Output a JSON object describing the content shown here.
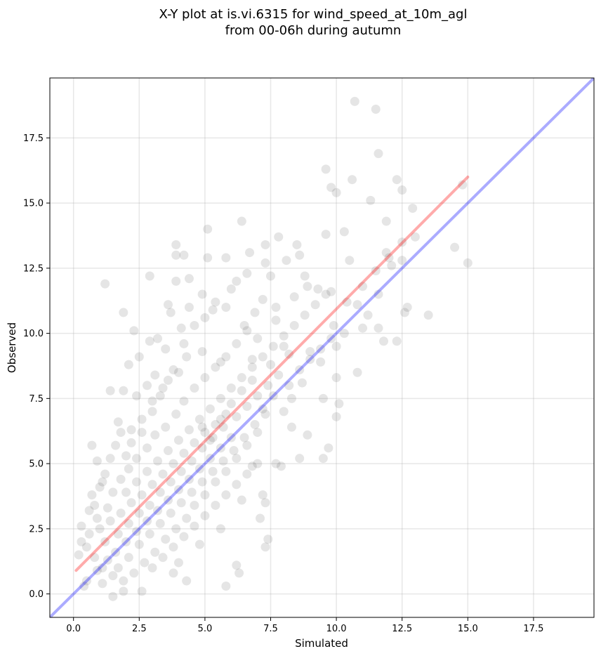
{
  "chart_data": {
    "type": "scatter",
    "title_lines": [
      "X-Y plot at is.vi.6315 for wind_speed_at_10m_agl",
      "from 00-06h during autumn"
    ],
    "xlabel": "Simulated",
    "ylabel": "Observed",
    "xlim": [
      -0.9,
      19.8
    ],
    "ylim": [
      -0.9,
      19.8
    ],
    "xticks": [
      0.0,
      2.5,
      5.0,
      7.5,
      10.0,
      12.5,
      15.0,
      17.5
    ],
    "yticks": [
      0.0,
      2.5,
      5.0,
      7.5,
      10.0,
      12.5,
      15.0,
      17.5
    ],
    "xtick_labels": [
      "0.0",
      "2.5",
      "5.0",
      "7.5",
      "10.0",
      "12.5",
      "15.0",
      "17.5"
    ],
    "ytick_labels": [
      "0.0",
      "2.5",
      "5.0",
      "7.5",
      "10.0",
      "12.5",
      "15.0",
      "17.5"
    ],
    "grid": true,
    "point_color": "#2b2b2b",
    "reference_lines": [
      {
        "kind": "one-to-one",
        "color": "#0000ff",
        "x": [
          -0.9,
          19.8
        ],
        "y": [
          -0.9,
          19.8
        ]
      },
      {
        "kind": "fit",
        "color": "#ff0000",
        "x": [
          0.1,
          15.0
        ],
        "y": [
          0.9,
          16.0
        ]
      }
    ],
    "points": [
      [
        10.7,
        18.9
      ],
      [
        11.5,
        18.6
      ],
      [
        11.6,
        16.9
      ],
      [
        9.6,
        16.3
      ],
      [
        10.6,
        15.9
      ],
      [
        9.8,
        15.6
      ],
      [
        10.0,
        15.4
      ],
      [
        14.8,
        15.7
      ],
      [
        12.3,
        15.9
      ],
      [
        12.5,
        15.5
      ],
      [
        11.3,
        15.1
      ],
      [
        12.9,
        14.8
      ],
      [
        11.9,
        14.3
      ],
      [
        6.4,
        14.3
      ],
      [
        5.1,
        14.0
      ],
      [
        10.3,
        13.9
      ],
      [
        9.6,
        13.8
      ],
      [
        7.8,
        13.7
      ],
      [
        8.5,
        13.4
      ],
      [
        3.9,
        13.4
      ],
      [
        7.3,
        13.4
      ],
      [
        4.2,
        13.0
      ],
      [
        3.9,
        13.0
      ],
      [
        14.5,
        13.3
      ],
      [
        15.0,
        12.7
      ],
      [
        13.0,
        13.7
      ],
      [
        12.5,
        13.5
      ],
      [
        5.1,
        12.9
      ],
      [
        5.8,
        12.9
      ],
      [
        2.9,
        12.2
      ],
      [
        3.9,
        12.0
      ],
      [
        4.4,
        12.1
      ],
      [
        1.2,
        11.9
      ],
      [
        12.0,
        12.9
      ],
      [
        12.5,
        12.8
      ],
      [
        11.6,
        11.5
      ],
      [
        12.7,
        11.0
      ],
      [
        13.5,
        10.7
      ],
      [
        12.6,
        10.8
      ],
      [
        11.6,
        10.2
      ],
      [
        11.8,
        9.7
      ],
      [
        12.3,
        9.7
      ],
      [
        10.8,
        8.5
      ],
      [
        10.0,
        8.3
      ],
      [
        10.1,
        7.3
      ],
      [
        10.0,
        6.8
      ],
      [
        9.7,
        5.6
      ],
      [
        9.5,
        5.2
      ],
      [
        8.6,
        5.2
      ],
      [
        7.7,
        5.0
      ],
      [
        7.9,
        4.9
      ],
      [
        6.8,
        4.9
      ],
      [
        7.2,
        3.8
      ],
      [
        7.3,
        3.5
      ],
      [
        7.1,
        2.9
      ],
      [
        7.4,
        2.1
      ],
      [
        7.3,
        1.8
      ],
      [
        6.2,
        1.1
      ],
      [
        6.3,
        0.8
      ],
      [
        5.8,
        0.3
      ],
      [
        4.3,
        0.5
      ],
      [
        3.8,
        0.8
      ],
      [
        2.6,
        0.1
      ],
      [
        1.5,
        -0.1
      ],
      [
        1.9,
        0.1
      ],
      [
        0.2,
        1.5
      ],
      [
        0.3,
        2.0
      ],
      [
        0.3,
        2.6
      ],
      [
        0.6,
        3.2
      ],
      [
        0.7,
        5.7
      ],
      [
        0.9,
        5.1
      ],
      [
        1.4,
        7.8
      ],
      [
        1.9,
        7.8
      ],
      [
        1.8,
        6.2
      ],
      [
        2.1,
        8.8
      ],
      [
        1.9,
        10.8
      ],
      [
        2.3,
        10.1
      ],
      [
        2.5,
        9.1
      ],
      [
        2.8,
        8.0
      ],
      [
        3.6,
        11.1
      ],
      [
        3.7,
        10.8
      ],
      [
        3.2,
        9.8
      ],
      [
        4.4,
        11.0
      ],
      [
        4.9,
        11.5
      ],
      [
        5.3,
        10.9
      ],
      [
        6.0,
        11.7
      ],
      [
        6.6,
        12.3
      ],
      [
        8.8,
        12.2
      ],
      [
        9.3,
        11.7
      ],
      [
        9.8,
        11.6
      ],
      [
        10.4,
        11.2
      ],
      [
        10.5,
        12.8
      ],
      [
        9.9,
        10.3
      ],
      [
        10.0,
        9.5
      ],
      [
        10.3,
        10.0
      ],
      [
        11.0,
        10.2
      ],
      [
        11.2,
        10.7
      ],
      [
        9.0,
        9.3
      ],
      [
        9.5,
        7.5
      ],
      [
        8.9,
        6.1
      ],
      [
        8.3,
        6.4
      ],
      [
        8.2,
        8.0
      ],
      [
        8.7,
        8.1
      ],
      [
        9.4,
        8.9
      ],
      [
        11.0,
        11.8
      ],
      [
        11.5,
        12.4
      ],
      [
        11.9,
        13.1
      ],
      [
        10.8,
        11.1
      ],
      [
        12.1,
        12.6
      ],
      [
        5.6,
        8.9
      ],
      [
        4.9,
        9.3
      ],
      [
        6.6,
        10.1
      ],
      [
        7.0,
        9.8
      ],
      [
        7.7,
        10.5
      ],
      [
        8.4,
        11.4
      ],
      [
        7.5,
        12.2
      ],
      [
        7.3,
        12.7
      ],
      [
        6.7,
        13.1
      ],
      [
        8.1,
        12.8
      ],
      [
        8.6,
        13.0
      ],
      [
        8.9,
        11.8
      ],
      [
        7.7,
        11.0
      ],
      [
        6.8,
        9.0
      ],
      [
        7.5,
        8.8
      ],
      [
        8.0,
        9.5
      ],
      [
        4.3,
        9.1
      ],
      [
        4.0,
        8.5
      ],
      [
        3.6,
        8.2
      ],
      [
        3.3,
        7.6
      ],
      [
        3.0,
        7.0
      ],
      [
        2.6,
        6.7
      ],
      [
        2.2,
        6.3
      ],
      [
        2.0,
        5.3
      ],
      [
        1.6,
        5.7
      ],
      [
        1.2,
        4.6
      ],
      [
        1.0,
        4.1
      ],
      [
        0.7,
        3.8
      ],
      [
        0.9,
        2.9
      ],
      [
        1.3,
        3.3
      ],
      [
        1.5,
        3.9
      ],
      [
        1.8,
        4.4
      ],
      [
        2.1,
        4.8
      ],
      [
        2.4,
        5.2
      ],
      [
        2.8,
        5.6
      ],
      [
        3.1,
        6.1
      ],
      [
        3.5,
        6.4
      ],
      [
        3.9,
        6.9
      ],
      [
        4.2,
        7.4
      ],
      [
        4.6,
        7.9
      ],
      [
        5.0,
        8.3
      ],
      [
        5.4,
        8.7
      ],
      [
        5.8,
        9.1
      ],
      [
        6.2,
        9.6
      ],
      [
        6.5,
        10.3
      ],
      [
        6.9,
        10.8
      ],
      [
        7.2,
        11.3
      ],
      [
        4.9,
        6.4
      ],
      [
        5.2,
        5.9
      ],
      [
        5.6,
        6.7
      ],
      [
        6.0,
        7.3
      ],
      [
        6.4,
        7.8
      ],
      [
        6.8,
        8.2
      ],
      [
        7.2,
        7.1
      ],
      [
        7.6,
        7.6
      ],
      [
        8.0,
        7.0
      ],
      [
        8.3,
        7.5
      ],
      [
        7.0,
        6.2
      ],
      [
        6.6,
        5.7
      ],
      [
        6.2,
        5.2
      ],
      [
        5.8,
        4.7
      ],
      [
        5.4,
        4.3
      ],
      [
        5.0,
        3.8
      ],
      [
        4.6,
        3.4
      ],
      [
        4.3,
        2.9
      ],
      [
        3.9,
        2.5
      ],
      [
        3.5,
        2.1
      ],
      [
        3.1,
        1.6
      ],
      [
        2.7,
        1.2
      ],
      [
        2.3,
        0.8
      ],
      [
        1.9,
        0.5
      ],
      [
        1.5,
        0.7
      ],
      [
        1.1,
        1.0
      ],
      [
        0.8,
        1.4
      ],
      [
        0.5,
        1.8
      ],
      [
        0.6,
        2.3
      ],
      [
        1.0,
        2.5
      ],
      [
        1.4,
        2.8
      ],
      [
        1.8,
        3.1
      ],
      [
        2.2,
        3.5
      ],
      [
        2.6,
        3.8
      ],
      [
        3.0,
        4.2
      ],
      [
        3.4,
        4.6
      ],
      [
        3.8,
        5.0
      ],
      [
        4.2,
        5.4
      ],
      [
        4.6,
        5.8
      ],
      [
        5.0,
        6.2
      ],
      [
        1.6,
        1.6
      ],
      [
        2.0,
        2.0
      ],
      [
        2.4,
        2.4
      ],
      [
        2.8,
        2.8
      ],
      [
        3.2,
        3.2
      ],
      [
        3.6,
        3.6
      ],
      [
        4.0,
        4.0
      ],
      [
        4.4,
        4.4
      ],
      [
        4.8,
        4.8
      ],
      [
        5.2,
        5.2
      ],
      [
        5.6,
        5.6
      ],
      [
        6.0,
        6.0
      ],
      [
        1.2,
        2.0
      ],
      [
        1.7,
        2.3
      ],
      [
        2.1,
        2.7
      ],
      [
        2.5,
        3.1
      ],
      [
        2.9,
        3.4
      ],
      [
        3.3,
        3.9
      ],
      [
        3.7,
        4.3
      ],
      [
        4.1,
        4.7
      ],
      [
        4.5,
        5.1
      ],
      [
        4.9,
        5.6
      ],
      [
        5.3,
        6.0
      ],
      [
        5.7,
        6.4
      ],
      [
        1.3,
        1.3
      ],
      [
        1.7,
        1.0
      ],
      [
        2.1,
        1.4
      ],
      [
        2.5,
        1.9
      ],
      [
        2.9,
        2.3
      ],
      [
        3.3,
        2.7
      ],
      [
        3.7,
        3.1
      ],
      [
        4.1,
        3.5
      ],
      [
        4.5,
        3.9
      ],
      [
        4.9,
        4.3
      ],
      [
        5.3,
        4.7
      ],
      [
        5.7,
        5.1
      ],
      [
        6.1,
        5.5
      ],
      [
        6.5,
        6.0
      ],
      [
        6.9,
        6.5
      ],
      [
        7.3,
        6.9
      ],
      [
        2.0,
        3.9
      ],
      [
        2.4,
        4.3
      ],
      [
        2.8,
        4.7
      ],
      [
        3.2,
        5.1
      ],
      [
        3.6,
        5.5
      ],
      [
        4.0,
        5.9
      ],
      [
        4.4,
        6.3
      ],
      [
        4.8,
        6.7
      ],
      [
        5.2,
        7.1
      ],
      [
        5.6,
        7.5
      ],
      [
        6.0,
        7.9
      ],
      [
        6.4,
        8.3
      ],
      [
        6.8,
        8.7
      ],
      [
        7.2,
        9.1
      ],
      [
        7.6,
        9.5
      ],
      [
        8.0,
        9.9
      ],
      [
        8.4,
        10.3
      ],
      [
        8.8,
        10.7
      ],
      [
        9.2,
        11.1
      ],
      [
        9.6,
        11.5
      ],
      [
        8.6,
        8.6
      ],
      [
        9.0,
        9.0
      ],
      [
        9.4,
        9.4
      ],
      [
        9.8,
        9.8
      ],
      [
        8.2,
        9.2
      ],
      [
        7.8,
        8.4
      ],
      [
        7.4,
        8.0
      ],
      [
        7.0,
        7.6
      ],
      [
        6.6,
        7.2
      ],
      [
        6.2,
        6.8
      ],
      [
        5.8,
        6.9
      ],
      [
        5.4,
        6.5
      ],
      [
        3.0,
        1.0
      ],
      [
        3.4,
        1.4
      ],
      [
        3.8,
        1.8
      ],
      [
        4.2,
        2.2
      ],
      [
        4.6,
        2.6
      ],
      [
        5.0,
        3.0
      ],
      [
        5.4,
        3.4
      ],
      [
        5.8,
        3.8
      ],
      [
        6.2,
        4.2
      ],
      [
        6.6,
        4.6
      ],
      [
        7.0,
        5.0
      ],
      [
        4.0,
        1.2
      ],
      [
        4.8,
        1.9
      ],
      [
        5.6,
        2.5
      ],
      [
        6.4,
        3.6
      ],
      [
        0.5,
        0.5
      ],
      [
        0.9,
        0.9
      ],
      [
        1.1,
        0.4
      ],
      [
        0.4,
        0.3
      ],
      [
        2.2,
        5.8
      ],
      [
        2.6,
        6.2
      ],
      [
        3.0,
        7.4
      ],
      [
        3.4,
        7.9
      ],
      [
        3.8,
        8.6
      ],
      [
        4.2,
        9.6
      ],
      [
        4.6,
        10.3
      ],
      [
        5.0,
        10.6
      ],
      [
        5.4,
        11.2
      ],
      [
        5.8,
        11.0
      ],
      [
        6.2,
        12.0
      ],
      [
        4.1,
        10.2
      ],
      [
        3.5,
        9.4
      ],
      [
        2.9,
        9.7
      ],
      [
        3.1,
        8.4
      ],
      [
        2.4,
        7.6
      ],
      [
        1.7,
        6.6
      ],
      [
        1.4,
        5.2
      ],
      [
        1.1,
        4.3
      ],
      [
        0.8,
        3.4
      ]
    ]
  }
}
